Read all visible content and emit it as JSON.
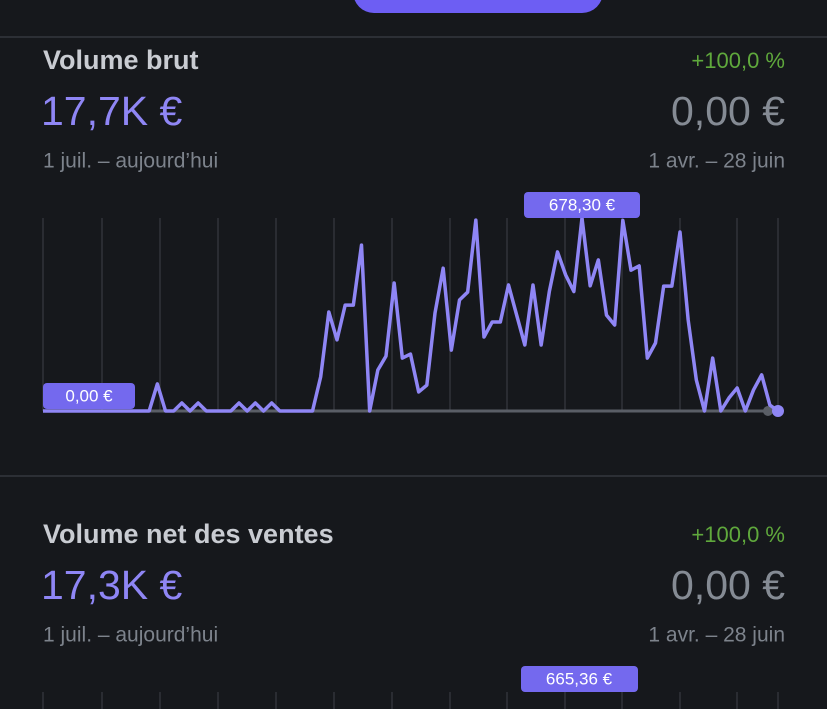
{
  "sections": [
    {
      "title": "Volume brut",
      "change": "+100,0 %",
      "value": "17,7K €",
      "compare_value": "0,00 €",
      "period": "1 juil. – aujourd’hui",
      "compare_period": "1 avr. – 28 juin",
      "chart": {
        "type": "line",
        "max_label": "678,30 €",
        "min_label": "0,00 €",
        "ylim": [
          0,
          678.3
        ],
        "color": "#8f86f5",
        "values": [
          0,
          0,
          0,
          0,
          0,
          0,
          0,
          0,
          0,
          0,
          0,
          0,
          0,
          0,
          95,
          0,
          0,
          28,
          0,
          28,
          0,
          0,
          0,
          0,
          28,
          0,
          28,
          0,
          28,
          0,
          0,
          0,
          0,
          0,
          120,
          348,
          250,
          372,
          372,
          583,
          0,
          144,
          193,
          450,
          186,
          200,
          67,
          91,
          344,
          502,
          214,
          390,
          418,
          671,
          260,
          313,
          313,
          443,
          337,
          232,
          443,
          232,
          420,
          559,
          478,
          420,
          678.3,
          440,
          531,
          337,
          302,
          670,
          495,
          510,
          186,
          239,
          439,
          439,
          629,
          320,
          109,
          0,
          186,
          0,
          46,
          81,
          0,
          74,
          127,
          21,
          0
        ]
      }
    },
    {
      "title": "Volume net des ventes",
      "change": "+100,0 %",
      "value": "17,3K €",
      "compare_value": "0,00 €",
      "period": "1 juil. – aujourd’hui",
      "compare_period": "1 avr. – 28 juin",
      "chart": {
        "max_label": "665,36 €"
      }
    }
  ]
}
